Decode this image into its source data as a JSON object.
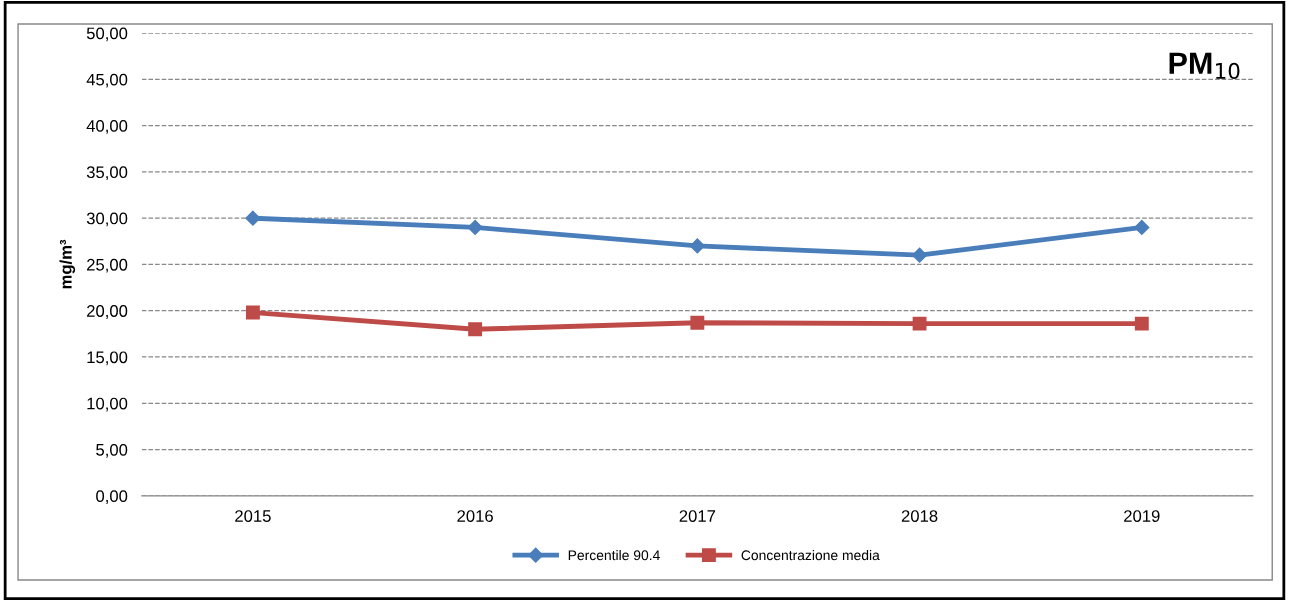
{
  "chart_data": {
    "type": "line",
    "ylabel": "mg/m³",
    "annotations": [
      "PM$_{10}$"
    ],
    "categories": [
      "2015",
      "2016",
      "2017",
      "2018",
      "2019"
    ],
    "series": [
      {
        "name": "Percentile 90.4",
        "color": "#4a7ebb",
        "marker": "diamond",
        "values": [
          30,
          29,
          27,
          26,
          29
        ]
      },
      {
        "name": "Concentrazione media",
        "color": "#be4b48",
        "marker": "square",
        "values": [
          19.8,
          18.0,
          18.7,
          18.6,
          18.6
        ]
      }
    ],
    "ylim": [
      0,
      50
    ],
    "yticks": [
      {
        "value": 0,
        "label": "0,00"
      },
      {
        "value": 5,
        "label": "5,00"
      },
      {
        "value": 10,
        "label": "10,00"
      },
      {
        "value": 15,
        "label": "15,00"
      },
      {
        "value": 20,
        "label": "20,00"
      },
      {
        "value": 25,
        "label": "25,00"
      },
      {
        "value": 30,
        "label": "30,00"
      },
      {
        "value": 35,
        "label": "35,00"
      },
      {
        "value": 40,
        "label": "40,00"
      },
      {
        "value": 45,
        "label": "45,00"
      },
      {
        "value": 50,
        "label": "50,00"
      }
    ],
    "grid": "y",
    "legend": "bottom",
    "line_style": "solid"
  }
}
